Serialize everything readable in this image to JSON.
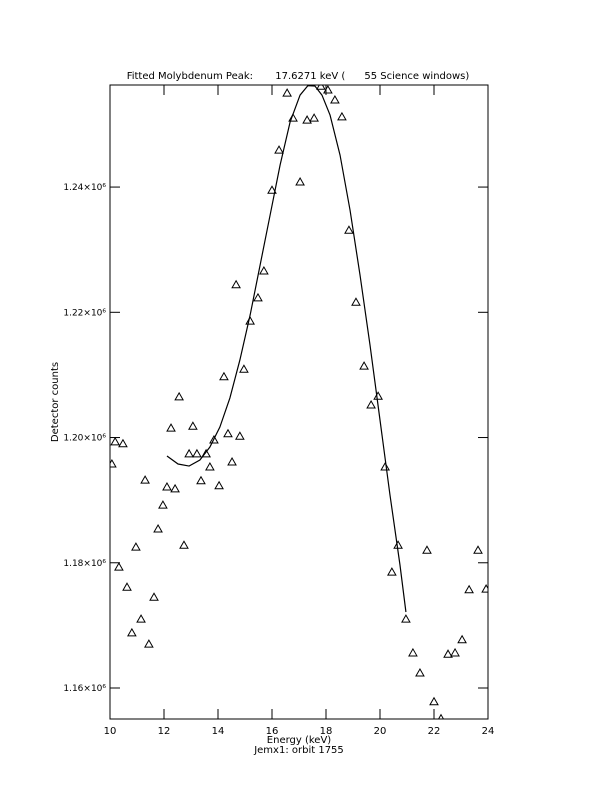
{
  "chart_data": {
    "type": "scatter",
    "title": "Fitted Molybdenum Peak:       17.6271 keV (      55 Science windows)",
    "xlabel": "Energy (keV)",
    "ylabel": "Detector counts",
    "footer": "Jemx1: orbit 1755",
    "xlim": [
      10,
      24
    ],
    "xticks": [
      10,
      12,
      14,
      16,
      18,
      20,
      22,
      24
    ],
    "ylim": [
      1155050,
      1256300
    ],
    "yticks": [
      {
        "value": 1160000,
        "label": "1.16×10⁶"
      },
      {
        "value": 1180000,
        "label": "1.18×10⁶"
      },
      {
        "value": 1200000,
        "label": "1.20×10⁶"
      },
      {
        "value": 1220000,
        "label": "1.22×10⁶"
      },
      {
        "value": 1240000,
        "label": "1.24×10⁶"
      }
    ],
    "series": [
      {
        "style": "triangles",
        "color": "#000000",
        "x": [
          10.07,
          10.19,
          10.48,
          10.33,
          10.63,
          10.81,
          10.96,
          11.15,
          11.3,
          11.44,
          11.63,
          11.78,
          11.96,
          12.11,
          12.26,
          12.41,
          12.56,
          12.74,
          12.93,
          13.07,
          13.22,
          13.37,
          13.56,
          13.7,
          13.85,
          14.04,
          14.22,
          14.37,
          14.52,
          14.67,
          14.81,
          14.96,
          15.19,
          15.48,
          15.7,
          16.0,
          16.26,
          16.56,
          16.78,
          17.04,
          17.3,
          17.56,
          17.81,
          18.07,
          18.33,
          18.59,
          18.85,
          19.11,
          19.41,
          19.67,
          19.93,
          20.19,
          20.44,
          20.67,
          20.96,
          21.22,
          21.48,
          21.74,
          22.0,
          22.26,
          22.52,
          22.78,
          23.04,
          23.3,
          23.63,
          23.93
        ],
        "values": [
          1195770,
          1199300,
          1199000,
          1179300,
          1176100,
          1168800,
          1182500,
          1171000,
          1193200,
          1167000,
          1174500,
          1185400,
          1189200,
          1192100,
          1201500,
          1191800,
          1206500,
          1182800,
          1197400,
          1201800,
          1197400,
          1193100,
          1197400,
          1195300,
          1199600,
          1192300,
          1209700,
          1200600,
          1196100,
          1224400,
          1200200,
          1210900,
          1218600,
          1222300,
          1226600,
          1239500,
          1245900,
          1255000,
          1251000,
          1240800,
          1250700,
          1251000,
          1256100,
          1255500,
          1253900,
          1251200,
          1233100,
          1221600,
          1211400,
          1205200,
          1206600,
          1195300,
          1178500,
          1182800,
          1171000,
          1165600,
          1162400,
          1182000,
          1157800,
          1155100,
          1165400,
          1165600,
          1167700,
          1175700,
          1182000,
          1175800
        ]
      },
      {
        "style": "line",
        "color": "#000000",
        "x": [
          12.11,
          12.52,
          12.93,
          13.33,
          13.7,
          14.07,
          14.44,
          14.81,
          15.19,
          15.56,
          15.93,
          16.3,
          16.67,
          17.04,
          17.33,
          17.59,
          17.85,
          18.15,
          18.52,
          18.89,
          19.26,
          19.63,
          20.0,
          20.37,
          20.74,
          20.96
        ],
        "values": [
          1197050,
          1195770,
          1195450,
          1196410,
          1198480,
          1201680,
          1206310,
          1212370,
          1219560,
          1227550,
          1235530,
          1243520,
          1250380,
          1254690,
          1256200,
          1256130,
          1254690,
          1251500,
          1245110,
          1236330,
          1225950,
          1214770,
          1202800,
          1190820,
          1179640,
          1172140
        ]
      }
    ]
  }
}
